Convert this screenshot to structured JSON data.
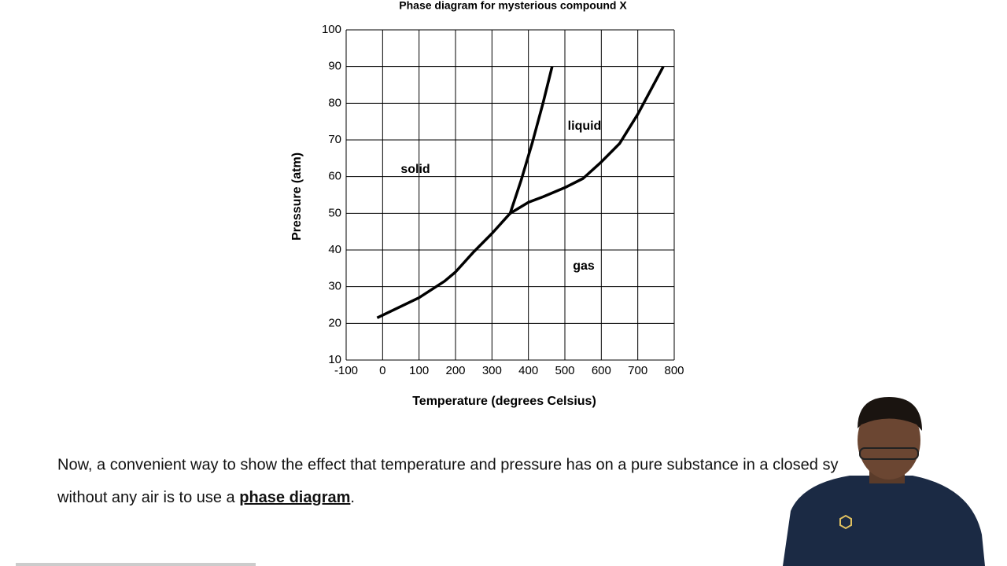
{
  "chart_data": {
    "type": "line",
    "title": "Phase diagram for mysterious compound X",
    "xlabel": "Temperature (degrees Celsius)",
    "ylabel": "Pressure (atm)",
    "xlim": [
      -100,
      800
    ],
    "xticks": [
      -100,
      0,
      100,
      200,
      300,
      400,
      500,
      600,
      700,
      800
    ],
    "ylim": [
      10,
      100
    ],
    "yticks": [
      10,
      20,
      30,
      40,
      50,
      60,
      70,
      80,
      90,
      100
    ],
    "grid": true,
    "series": [
      {
        "color": "#000000",
        "x": [
          -15,
          100,
          170,
          200,
          250,
          300,
          350
        ],
        "values": [
          21.5,
          27,
          31.5,
          34,
          39.5,
          44.5,
          50
        ]
      },
      {
        "color": "#000000",
        "x": [
          350,
          380,
          410,
          440,
          465
        ],
        "values": [
          50,
          59,
          69,
          80,
          90
        ]
      },
      {
        "color": "#000000",
        "x": [
          350,
          400,
          440,
          500,
          550,
          600,
          650,
          700,
          770
        ],
        "values": [
          50,
          53,
          54.5,
          57,
          59.5,
          64,
          69,
          77,
          90
        ]
      }
    ],
    "annotations": [
      "solid",
      "liquid",
      "gas"
    ]
  },
  "caption": {
    "line1": "Now, a convenient way to show the effect that temperature and pressure has on a pure substance in a closed sy",
    "line2": "without any air is to use a ",
    "term": "phase diagram",
    "end": "."
  }
}
